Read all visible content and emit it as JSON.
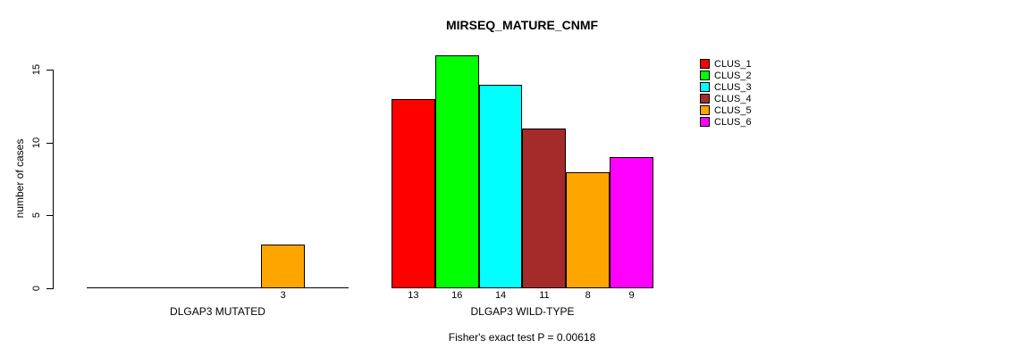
{
  "chart_data": {
    "type": "bar",
    "title": "MIRSEQ_MATURE_CNMF",
    "ylabel": "number of cases",
    "yticks": [
      0,
      5,
      10,
      15
    ],
    "ylim": [
      0,
      16
    ],
    "grid": false,
    "legend_position": "top-right",
    "series": [
      {
        "name": "CLUS_1",
        "color": "#FF0000"
      },
      {
        "name": "CLUS_2",
        "color": "#00FF00"
      },
      {
        "name": "CLUS_3",
        "color": "#00FFFF"
      },
      {
        "name": "CLUS_4",
        "color": "#A52A2A"
      },
      {
        "name": "CLUS_5",
        "color": "#FFA500"
      },
      {
        "name": "CLUS_6",
        "color": "#FF00FF"
      }
    ],
    "groups": [
      {
        "label": "DLGAP3 MUTATED",
        "values": [
          0,
          0,
          0,
          0,
          3,
          0
        ]
      },
      {
        "label": "DLGAP3 WILD-TYPE",
        "values": [
          13,
          16,
          14,
          11,
          8,
          9
        ]
      }
    ],
    "annotation": "Fisher's exact test P = 0.00618"
  }
}
